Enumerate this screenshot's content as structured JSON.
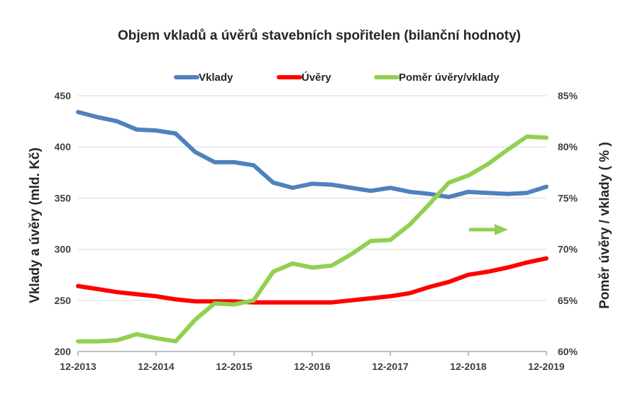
{
  "chart_data": {
    "type": "line",
    "title": "Objem vkladů a úvěrů stavebních spořitelen (bilanční hodnoty)",
    "ylabel_left": "Vklady a úvěry (mld. Kč)",
    "ylabel_right": "Poměr úvěry / vklady ( % )",
    "ylim_left": [
      200,
      450
    ],
    "ylim_right": [
      60,
      85
    ],
    "left_ticks": [
      "200",
      "250",
      "300",
      "350",
      "400",
      "450"
    ],
    "right_ticks": [
      "60%",
      "65%",
      "70%",
      "75%",
      "80%",
      "85%"
    ],
    "x_labels": [
      "12-2013",
      "12-2014",
      "12-2015",
      "12-2016",
      "12-2017",
      "12-2018",
      "12-2019"
    ],
    "grid": true,
    "legend_position": "top",
    "series": [
      {
        "name": "Vklady",
        "axis": "left",
        "color": "#4f81bd",
        "values": [
          434,
          429,
          425,
          417,
          416,
          413,
          395,
          385,
          385,
          382,
          365,
          360,
          364,
          363,
          360,
          357,
          360,
          356,
          354,
          351,
          356,
          355,
          354,
          355,
          361
        ]
      },
      {
        "name": "Úvěry",
        "axis": "left",
        "color": "#ff0000",
        "values": [
          264,
          261,
          258,
          256,
          254,
          251,
          249,
          249,
          249,
          248,
          248,
          248,
          248,
          248,
          250,
          252,
          254,
          257,
          263,
          268,
          275,
          278,
          282,
          287,
          291
        ]
      },
      {
        "name": "Poměr úvěry/vklady",
        "axis": "right",
        "color": "#92d050",
        "values": [
          61.0,
          61.0,
          61.1,
          61.7,
          61.3,
          61.0,
          63.1,
          64.7,
          64.6,
          65.0,
          67.8,
          68.6,
          68.2,
          68.4,
          69.5,
          70.8,
          70.9,
          72.4,
          74.4,
          76.5,
          77.2,
          78.3,
          79.7,
          81.0,
          80.9
        ]
      }
    ],
    "annotations": [
      {
        "type": "arrow",
        "direction": "right",
        "color": "#92d050",
        "meaning": "right-axis"
      }
    ]
  }
}
